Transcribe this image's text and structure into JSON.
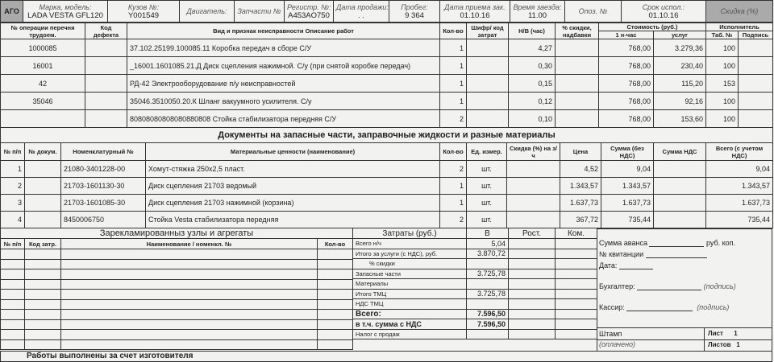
{
  "header": {
    "ago": "АГО",
    "fields": [
      {
        "label": "Марка, модель:",
        "value": "LADA VESTA GFL120"
      },
      {
        "label": "Кузов №:",
        "value": "Y001549"
      },
      {
        "label": "Двигатель:",
        "value": ""
      },
      {
        "label": "Запчасти №",
        "value": ""
      },
      {
        "label": "Регистр. №:",
        "value": "A453AO750"
      },
      {
        "label": "Дата продажи:",
        "value": ". ."
      },
      {
        "label": "Пробег:",
        "value": "9 364"
      },
      {
        "label": "Дата приема зак.",
        "value": "01.10.16"
      },
      {
        "label": "Время заезда:",
        "value": "11.00"
      },
      {
        "label": "Опоз. №",
        "value": ""
      },
      {
        "label": "Срок испол.:",
        "value": "01.10.16"
      },
      {
        "label": "Скидка (%)",
        "value": ""
      }
    ]
  },
  "works": {
    "headers": {
      "op": "№ операции перечня трудоем.",
      "defect": "Код дефекта",
      "desc": "Вид и признак неисправности Описание работ",
      "qty": "Кол-во",
      "code": "Шифр/ код затрат",
      "nv": "Н/В (час)",
      "disc": "% скидки, надбавки",
      "cost": "Стоимость (руб.)",
      "hour": "1 н-час",
      "services": "услуг",
      "executor": "Исполнитель",
      "tab": "Таб. №",
      "sign": "Подпись"
    },
    "rows": [
      {
        "op": "1000085",
        "desc": "37.102.25199.100085.11 Коробка передач в сборе С/У",
        "qty": "1",
        "nv": "4,27",
        "hour": "768,00",
        "services": "3.279,36",
        "tab": "100"
      },
      {
        "op": "16001",
        "desc": "_16001.1601085.21.Д Диск сцепления нажимной. С/у (при снятой коробке передач)",
        "qty": "1",
        "nv": "0,30",
        "hour": "768,00",
        "services": "230,40",
        "tab": "100"
      },
      {
        "op": "42",
        "desc": "РД-42 Электрооборудование п/у неисправностей",
        "qty": "1",
        "nv": "0,15",
        "hour": "768,00",
        "services": "115,20",
        "tab": "153"
      },
      {
        "op": "35046",
        "desc": "35046.3510050.20.К Шланг вакуумного усилителя. С/у",
        "qty": "1",
        "nv": "0,12",
        "hour": "768,00",
        "services": "92,16",
        "tab": "100"
      },
      {
        "op": "",
        "desc": "80808080808080880808 Стойка стабилизатора передняя С/У",
        "qty": "2",
        "nv": "0,10",
        "hour": "768,00",
        "services": "153,60",
        "tab": "100"
      }
    ]
  },
  "parts": {
    "title": "Документы на запасные части, заправочные жидкости и разные материалы",
    "headers": {
      "n": "№ п/п",
      "doc": "№ докум.",
      "nom": "Номенклатурный №",
      "name": "Материальные ценности (наименование)",
      "qty": "Кол-во",
      "unit": "Ед. измер.",
      "disc": "Скидка (%) на з/ч",
      "price": "Цена",
      "sum": "Сумма (без НДС)",
      "vat": "Сумма НДС",
      "total": "Всего (с учетом НДС)"
    },
    "rows": [
      {
        "n": "1",
        "nom": "21080-3401228-00",
        "name": "Хомут-стяжка 250х2,5 пласт.",
        "qty": "2",
        "unit": "шт.",
        "price": "4,52",
        "sum": "9,04",
        "total": "9,04"
      },
      {
        "n": "2",
        "nom": "21703-1601130-30",
        "name": "Диск сцепления 21703 ведомый",
        "qty": "1",
        "unit": "шт.",
        "price": "1.343,57",
        "sum": "1.343,57",
        "total": "1.343,57"
      },
      {
        "n": "3",
        "nom": "21703-1601085-30",
        "name": "Диск сцепления 21703 нажимной (корзина)",
        "qty": "1",
        "unit": "шт.",
        "price": "1.637,73",
        "sum": "1.637,73",
        "total": "1.637,73"
      },
      {
        "n": "4",
        "nom": "8450006750",
        "name": "Стойка Vesta стабилизатора передняя",
        "qty": "2",
        "unit": "шт.",
        "price": "367,72",
        "sum": "735,44",
        "total": "735,44"
      }
    ]
  },
  "claimed": {
    "title": "Зарекламированныз узлы и агрегаты",
    "headers": {
      "n": "№ п/п",
      "code": "Код затр.",
      "name": "Наименование / номенкл. №",
      "qty": "Кол-во"
    }
  },
  "costs": {
    "headers": {
      "label": "Затраты (руб.)",
      "b": "В",
      "rost": "Рост.",
      "kom": "Ком."
    },
    "rows": [
      {
        "label": "Всего н/ч",
        "b": "5,04"
      },
      {
        "label": "Итого за услуги (с НДС), руб.",
        "b": "3.870,72"
      },
      {
        "label": "% скидки",
        "b": ""
      },
      {
        "label": "Запасные части",
        "b": "3.725,78"
      },
      {
        "label": "Материалы",
        "b": ""
      },
      {
        "label": "Итого ТМЦ",
        "b": "3.725,78"
      },
      {
        "label": "НДС ТМЦ",
        "b": ""
      },
      {
        "label": "Всего:",
        "b": "7.596,50"
      },
      {
        "label": "в т.ч. сумма с НДС",
        "b": "7.596,50"
      },
      {
        "label": "Налог с продаж",
        "b": ""
      }
    ]
  },
  "payment": {
    "advance": "Сумма аванса",
    "rub": "руб. коп.",
    "receipt": "№ квитанции",
    "date": "Дата:",
    "accountant": "Бухгалтер:",
    "cashier": "Кассир:",
    "signature": "(подпись)",
    "stamp": "Штамп",
    "paid": "(оплачено)",
    "sheet": "Лист",
    "sheet_val": "1",
    "sheets": "Листов",
    "sheets_val": "1"
  },
  "footer": "Работы выполнены за счет изготовителя"
}
